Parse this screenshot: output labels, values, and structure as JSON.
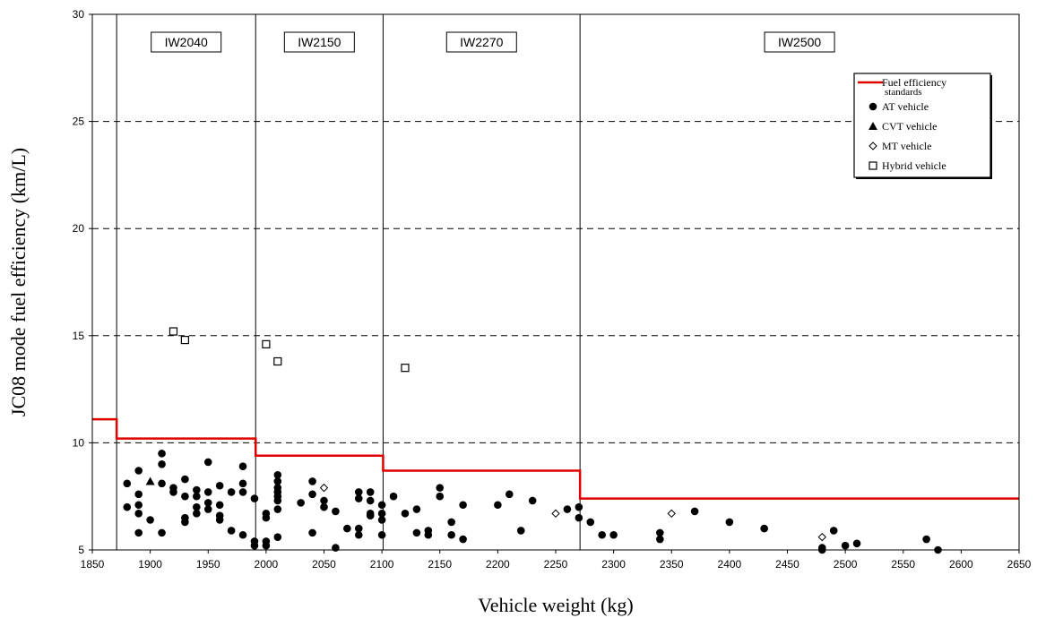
{
  "chart_data": {
    "type": "scatter",
    "xlabel": "Vehicle weight (kg)",
    "ylabel": "JC08 mode fuel efficiency (km/L)",
    "xlim": [
      1850,
      2650
    ],
    "ylim": [
      5,
      30
    ],
    "xticks": [
      1850,
      1900,
      1950,
      2000,
      2050,
      2100,
      2150,
      2200,
      2250,
      2300,
      2350,
      2400,
      2450,
      2500,
      2550,
      2600,
      2650
    ],
    "yticks": [
      5,
      10,
      15,
      20,
      25,
      30
    ],
    "grid": "horizontal dashed",
    "legend_position": "top-right",
    "colors": {
      "standard": "#e00000",
      "markers": "#000000",
      "grid": "#000000"
    },
    "weight_classes": [
      {
        "label": "IW2040",
        "x_start": 1871,
        "x_end": 1991
      },
      {
        "label": "IW2150",
        "x_start": 1991,
        "x_end": 2101
      },
      {
        "label": "IW2270",
        "x_start": 2101,
        "x_end": 2271
      },
      {
        "label": "IW2500",
        "x_start": 2271,
        "x_end": 2650
      }
    ],
    "legend": [
      {
        "marker": "line",
        "label_line1": "Fuel efficiency",
        "label_line2": "standards"
      },
      {
        "marker": "circle",
        "label": "AT vehicle"
      },
      {
        "marker": "triangle",
        "label": "CVT vehicle"
      },
      {
        "marker": "diamond",
        "label": "MT vehicle"
      },
      {
        "marker": "square",
        "label": "Hybrid vehicle"
      }
    ],
    "series": [
      {
        "name": "Fuel efficiency standards",
        "marker": "line",
        "steps": [
          {
            "x_start": 1850,
            "x_end": 1871,
            "y": 11.1
          },
          {
            "x_start": 1871,
            "x_end": 1991,
            "y": 10.2
          },
          {
            "x_start": 1991,
            "x_end": 2101,
            "y": 9.4
          },
          {
            "x_start": 2101,
            "x_end": 2271,
            "y": 8.7
          },
          {
            "x_start": 2271,
            "x_end": 2650,
            "y": 7.4
          }
        ]
      },
      {
        "name": "AT vehicle",
        "marker": "circle",
        "points": [
          [
            1880,
            8.1
          ],
          [
            1880,
            7.0
          ],
          [
            1890,
            8.7
          ],
          [
            1890,
            7.6
          ],
          [
            1890,
            7.1
          ],
          [
            1890,
            6.7
          ],
          [
            1890,
            5.8
          ],
          [
            1900,
            6.4
          ],
          [
            1910,
            9.5
          ],
          [
            1910,
            9.0
          ],
          [
            1910,
            8.1
          ],
          [
            1910,
            5.8
          ],
          [
            1920,
            7.9
          ],
          [
            1920,
            7.7
          ],
          [
            1930,
            8.3
          ],
          [
            1930,
            7.5
          ],
          [
            1930,
            6.5
          ],
          [
            1930,
            6.3
          ],
          [
            1940,
            7.8
          ],
          [
            1940,
            7.5
          ],
          [
            1940,
            7.0
          ],
          [
            1940,
            6.7
          ],
          [
            1950,
            9.1
          ],
          [
            1950,
            7.7
          ],
          [
            1950,
            7.2
          ],
          [
            1950,
            6.9
          ],
          [
            1960,
            8.0
          ],
          [
            1960,
            7.1
          ],
          [
            1960,
            6.6
          ],
          [
            1960,
            6.4
          ],
          [
            1970,
            7.7
          ],
          [
            1970,
            5.9
          ],
          [
            1980,
            8.9
          ],
          [
            1980,
            8.1
          ],
          [
            1980,
            7.7
          ],
          [
            1980,
            5.7
          ],
          [
            1990,
            7.4
          ],
          [
            1990,
            5.4
          ],
          [
            1990,
            5.2
          ],
          [
            2000,
            6.7
          ],
          [
            2000,
            6.5
          ],
          [
            2000,
            5.4
          ],
          [
            2000,
            5.2
          ],
          [
            2010,
            8.5
          ],
          [
            2010,
            8.2
          ],
          [
            2010,
            7.9
          ],
          [
            2010,
            7.7
          ],
          [
            2010,
            7.5
          ],
          [
            2010,
            7.3
          ],
          [
            2010,
            6.9
          ],
          [
            2010,
            5.6
          ],
          [
            2030,
            7.2
          ],
          [
            2040,
            8.2
          ],
          [
            2040,
            7.6
          ],
          [
            2040,
            5.8
          ],
          [
            2050,
            7.3
          ],
          [
            2050,
            7.0
          ],
          [
            2060,
            6.8
          ],
          [
            2060,
            5.1
          ],
          [
            2070,
            6.0
          ],
          [
            2080,
            7.7
          ],
          [
            2080,
            7.4
          ],
          [
            2080,
            6.0
          ],
          [
            2080,
            5.7
          ],
          [
            2090,
            7.7
          ],
          [
            2090,
            7.3
          ],
          [
            2090,
            6.7
          ],
          [
            2090,
            6.6
          ],
          [
            2100,
            7.1
          ],
          [
            2100,
            6.7
          ],
          [
            2100,
            6.4
          ],
          [
            2100,
            5.7
          ],
          [
            2110,
            7.5
          ],
          [
            2120,
            6.7
          ],
          [
            2130,
            6.9
          ],
          [
            2130,
            5.8
          ],
          [
            2140,
            5.9
          ],
          [
            2140,
            5.7
          ],
          [
            2150,
            7.9
          ],
          [
            2150,
            7.5
          ],
          [
            2160,
            6.3
          ],
          [
            2160,
            5.7
          ],
          [
            2170,
            7.1
          ],
          [
            2170,
            5.5
          ],
          [
            2200,
            7.1
          ],
          [
            2210,
            7.6
          ],
          [
            2220,
            5.9
          ],
          [
            2230,
            7.3
          ],
          [
            2260,
            6.9
          ],
          [
            2270,
            7.0
          ],
          [
            2270,
            6.5
          ],
          [
            2280,
            6.3
          ],
          [
            2290,
            5.7
          ],
          [
            2300,
            5.7
          ],
          [
            2340,
            5.8
          ],
          [
            2340,
            5.5
          ],
          [
            2370,
            6.8
          ],
          [
            2400,
            6.3
          ],
          [
            2430,
            6.0
          ],
          [
            2480,
            5.1
          ],
          [
            2480,
            5.0
          ],
          [
            2490,
            5.9
          ],
          [
            2500,
            5.2
          ],
          [
            2510,
            5.3
          ],
          [
            2570,
            5.5
          ],
          [
            2580,
            5.0
          ]
        ]
      },
      {
        "name": "CVT vehicle",
        "marker": "triangle",
        "points": [
          [
            1900,
            8.2
          ]
        ]
      },
      {
        "name": "MT vehicle",
        "marker": "diamond",
        "points": [
          [
            2050,
            7.9
          ],
          [
            2250,
            6.7
          ],
          [
            2350,
            6.7
          ],
          [
            2480,
            5.6
          ]
        ]
      },
      {
        "name": "Hybrid vehicle",
        "marker": "square",
        "points": [
          [
            1920,
            15.2
          ],
          [
            1930,
            14.8
          ],
          [
            2000,
            14.6
          ],
          [
            2010,
            13.8
          ],
          [
            2120,
            13.5
          ]
        ]
      }
    ]
  }
}
